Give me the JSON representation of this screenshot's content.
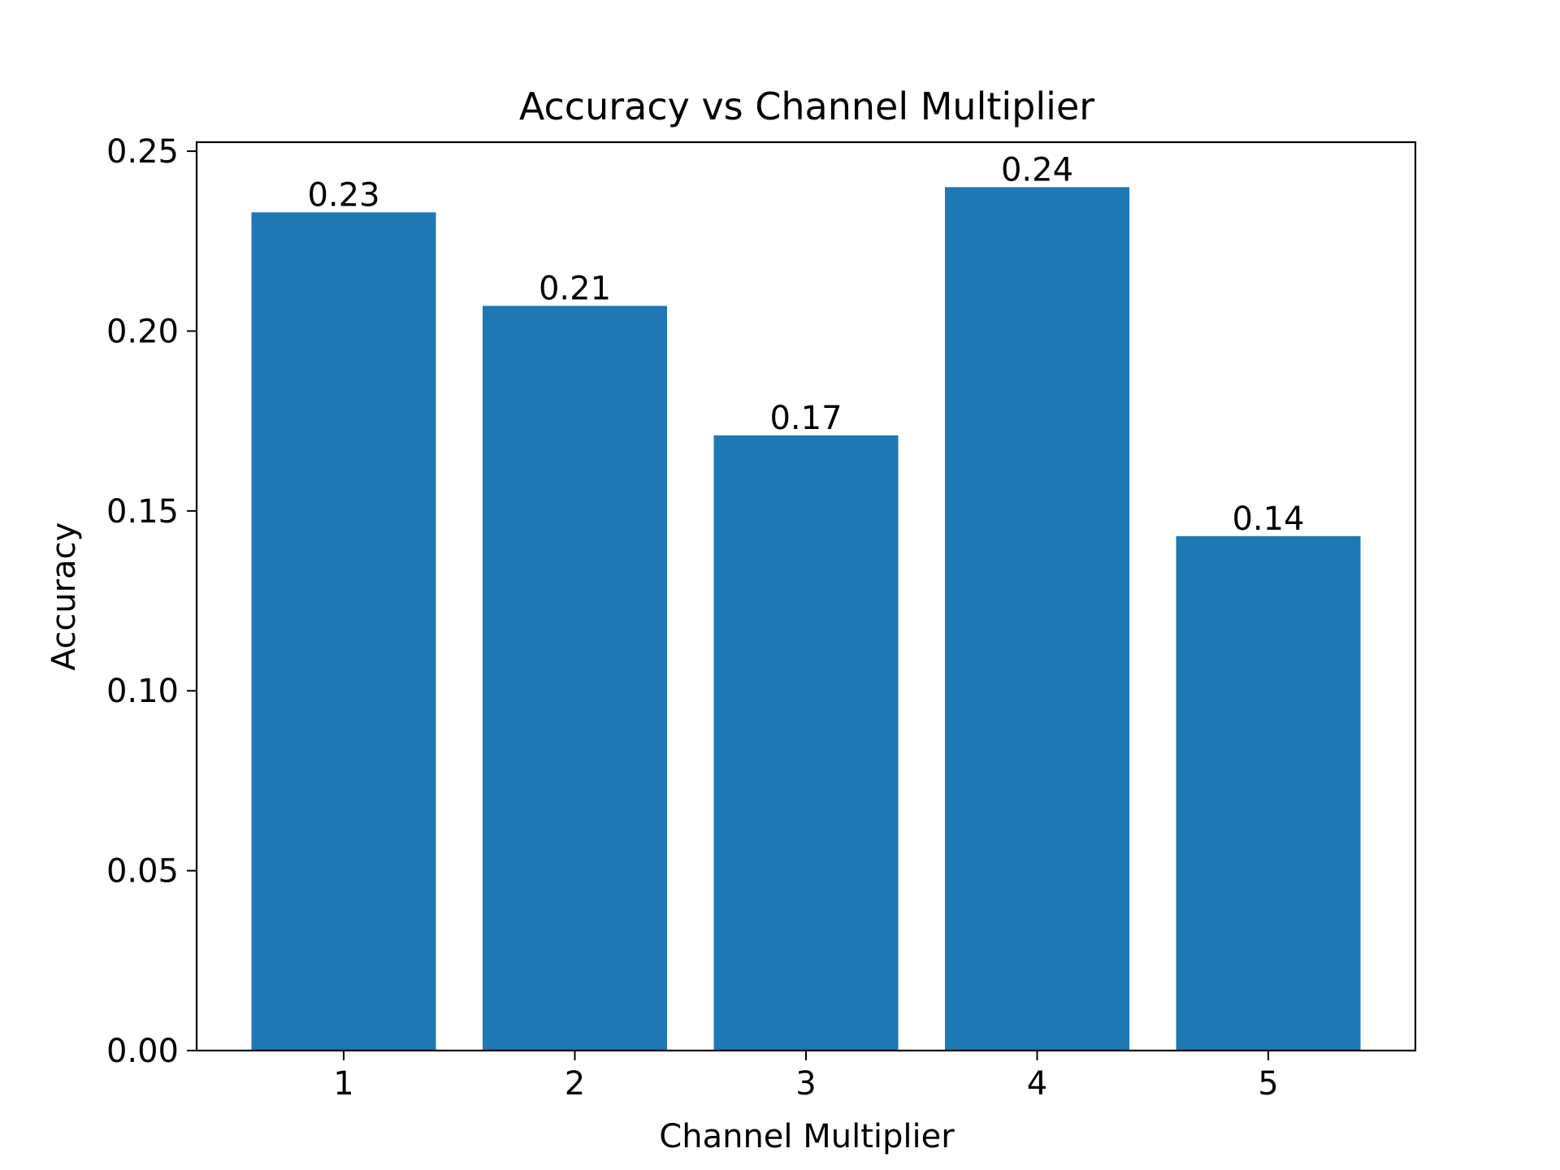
{
  "chart_data": {
    "type": "bar",
    "title": "Accuracy vs Channel Multiplier",
    "xlabel": "Channel Multiplier",
    "ylabel": "Accuracy",
    "categories": [
      "1",
      "2",
      "3",
      "4",
      "5"
    ],
    "values": [
      0.233,
      0.207,
      0.171,
      0.24,
      0.143
    ],
    "data_labels": [
      "0.23",
      "0.21",
      "0.17",
      "0.24",
      "0.14"
    ],
    "ylim": [
      0,
      0.2525
    ],
    "yticks": [
      0.0,
      0.05,
      0.1,
      0.15,
      0.2,
      0.25
    ],
    "ytick_labels": [
      "0.00",
      "0.05",
      "0.10",
      "0.15",
      "0.20",
      "0.25"
    ],
    "grid": false,
    "legend": "none",
    "bar_color": "#1f77b4"
  }
}
